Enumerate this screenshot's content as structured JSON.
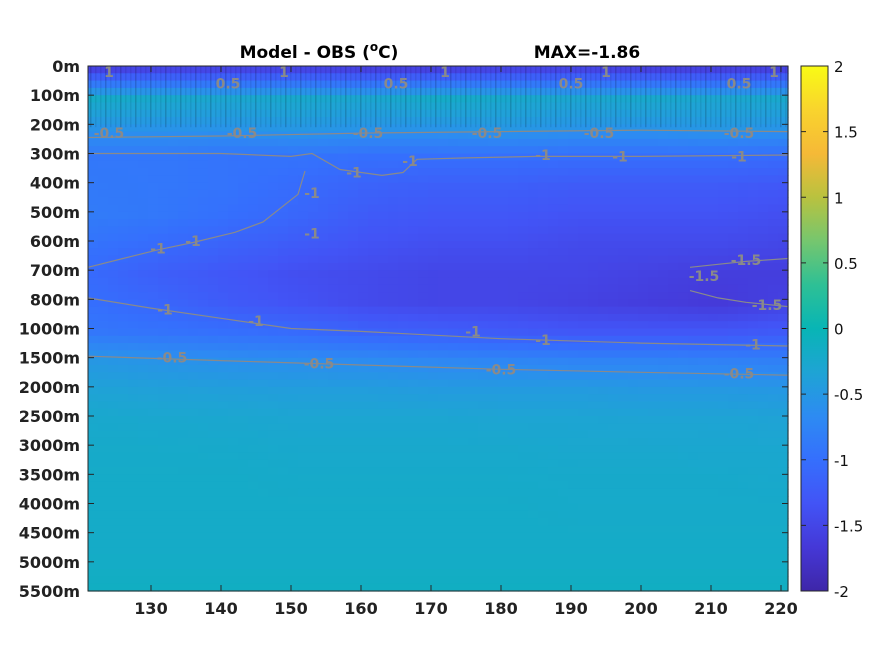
{
  "chart_data": {
    "type": "heatmap",
    "title": "Model - OBS (oC)",
    "title_parts": {
      "prefix": "Model - OBS (",
      "superscript": "o",
      "suffix": "C)"
    },
    "max_label": "MAX=-1.86",
    "xlabel": "",
    "ylabel": "",
    "xlim": [
      121,
      221
    ],
    "x_ticks": [
      130,
      140,
      150,
      160,
      170,
      180,
      190,
      200,
      210,
      220
    ],
    "y_ticks": [
      "0m",
      "100m",
      "200m",
      "300m",
      "400m",
      "500m",
      "600m",
      "700m",
      "800m",
      "1000m",
      "1500m",
      "2000m",
      "2500m",
      "3000m",
      "3500m",
      "4000m",
      "4500m",
      "5000m",
      "5500m"
    ],
    "colorbar": {
      "range": [
        -2,
        2
      ],
      "ticks": [
        "2",
        "1.5",
        "1",
        "0.5",
        "0",
        "-0.5",
        "-1",
        "-1.5",
        "-2"
      ],
      "colormap": [
        "#3e26a8",
        "#4538d7",
        "#4254f6",
        "#356ffd",
        "#2d8bf2",
        "#1ea4d4",
        "#08b5b5",
        "#2ec095",
        "#76c66e",
        "#b9c23f",
        "#f5b937",
        "#f9d42d",
        "#f9fb15"
      ]
    },
    "grid": false,
    "rows": [
      {
        "depth": "0m",
        "values": [
          -1.55,
          -1.5,
          -1.5,
          -1.5,
          -1.55,
          -1.55,
          -1.5,
          -1.5,
          -1.55,
          -1.55,
          -1.55
        ]
      },
      {
        "depth": "100m",
        "values": [
          -0.2,
          -0.25,
          -0.3,
          -0.25,
          -0.3,
          -0.2,
          -0.25,
          -0.3,
          -0.25,
          -0.3,
          -0.25
        ]
      },
      {
        "depth": "200m",
        "values": [
          -0.55,
          -0.55,
          -0.55,
          -0.5,
          -0.55,
          -0.55,
          -0.5,
          -0.55,
          -0.55,
          -0.5,
          -0.55
        ]
      },
      {
        "depth": "300m",
        "values": [
          -0.9,
          -0.9,
          -0.95,
          -0.95,
          -1.0,
          -1.0,
          -1.0,
          -1.02,
          -1.02,
          -1.02,
          -1.05
        ]
      },
      {
        "depth": "400m",
        "values": [
          -0.88,
          -0.9,
          -0.95,
          -1.05,
          -1.15,
          -1.2,
          -1.2,
          -1.25,
          -1.25,
          -1.25,
          -1.3
        ]
      },
      {
        "depth": "500m",
        "values": [
          -0.85,
          -0.9,
          -1.0,
          -1.1,
          -1.25,
          -1.3,
          -1.3,
          -1.35,
          -1.35,
          -1.35,
          -1.4
        ]
      },
      {
        "depth": "600m",
        "values": [
          -0.95,
          -1.05,
          -1.15,
          -1.25,
          -1.35,
          -1.4,
          -1.4,
          -1.45,
          -1.45,
          -1.45,
          -1.5
        ]
      },
      {
        "depth": "700m",
        "values": [
          -1.05,
          -1.2,
          -1.3,
          -1.4,
          -1.45,
          -1.5,
          -1.5,
          -1.5,
          -1.55,
          -1.6,
          -1.6
        ]
      },
      {
        "depth": "800m",
        "values": [
          -1.0,
          -1.1,
          -1.25,
          -1.35,
          -1.45,
          -1.5,
          -1.5,
          -1.55,
          -1.6,
          -1.65,
          -1.55
        ]
      },
      {
        "depth": "1000m",
        "values": [
          -0.9,
          -0.95,
          -1.0,
          -1.05,
          -1.15,
          -1.2,
          -1.25,
          -1.3,
          -1.3,
          -1.3,
          -1.25
        ]
      },
      {
        "depth": "1500m",
        "values": [
          -0.5,
          -0.55,
          -0.6,
          -0.62,
          -0.65,
          -0.7,
          -0.72,
          -0.75,
          -0.75,
          -0.78,
          -0.8
        ]
      },
      {
        "depth": "2000m",
        "values": [
          -0.35,
          -0.38,
          -0.4,
          -0.42,
          -0.42,
          -0.45,
          -0.45,
          -0.45,
          -0.48,
          -0.48,
          -0.5
        ]
      },
      {
        "depth": "2500m",
        "values": [
          -0.25,
          -0.27,
          -0.28,
          -0.3,
          -0.3,
          -0.3,
          -0.32,
          -0.32,
          -0.33,
          -0.33,
          -0.35
        ]
      },
      {
        "depth": "3000m",
        "values": [
          -0.22,
          -0.22,
          -0.23,
          -0.25,
          -0.25,
          -0.25,
          -0.25,
          -0.27,
          -0.27,
          -0.28,
          -0.28
        ]
      },
      {
        "depth": "3500m",
        "values": [
          -0.2,
          -0.2,
          -0.2,
          -0.22,
          -0.22,
          -0.22,
          -0.22,
          -0.23,
          -0.23,
          -0.23,
          -0.25
        ]
      },
      {
        "depth": "4000m",
        "values": [
          -0.2,
          -0.2,
          -0.2,
          -0.2,
          -0.2,
          -0.2,
          -0.2,
          -0.22,
          -0.22,
          -0.22,
          -0.22
        ]
      },
      {
        "depth": "4500m",
        "values": [
          -0.2,
          -0.2,
          -0.2,
          -0.2,
          -0.2,
          -0.2,
          -0.2,
          -0.2,
          -0.2,
          -0.2,
          -0.2
        ]
      },
      {
        "depth": "5000m",
        "values": [
          -0.18,
          -0.18,
          -0.18,
          -0.18,
          -0.18,
          -0.18,
          -0.18,
          -0.18,
          -0.18,
          -0.18,
          -0.18
        ]
      },
      {
        "depth": "5500m",
        "values": [
          -0.12,
          -0.12,
          -0.12,
          -0.12,
          -0.12,
          -0.12,
          -0.12,
          -0.12,
          -0.12,
          -0.12,
          -0.12
        ]
      }
    ],
    "row_x": [
      121,
      131,
      141,
      151,
      161,
      171,
      181,
      191,
      201,
      211,
      221
    ],
    "contour_labels": [
      {
        "text": "1",
        "x": 124,
        "depth": 0.2
      },
      {
        "text": "1",
        "x": 149,
        "depth": 0.2
      },
      {
        "text": "1",
        "x": 172,
        "depth": 0.2
      },
      {
        "text": "1",
        "x": 195,
        "depth": 0.2
      },
      {
        "text": "1",
        "x": 219,
        "depth": 0.2
      },
      {
        "text": "0.5",
        "x": 141,
        "depth": 0.6
      },
      {
        "text": "0.5",
        "x": 165,
        "depth": 0.6
      },
      {
        "text": "0.5",
        "x": 190,
        "depth": 0.6
      },
      {
        "text": "0.5",
        "x": 214,
        "depth": 0.6
      },
      {
        "text": "-0.5",
        "x": 124,
        "depth": 2.3
      },
      {
        "text": "-0.5",
        "x": 143,
        "depth": 2.3
      },
      {
        "text": "-0.5",
        "x": 161,
        "depth": 2.3
      },
      {
        "text": "-0.5",
        "x": 178,
        "depth": 2.3
      },
      {
        "text": "-0.5",
        "x": 194,
        "depth": 2.3
      },
      {
        "text": "-0.5",
        "x": 214,
        "depth": 2.3
      },
      {
        "text": "-1",
        "x": 167,
        "depth": 3.25
      },
      {
        "text": "-1",
        "x": 186,
        "depth": 3.05
      },
      {
        "text": "-1",
        "x": 197,
        "depth": 3.1
      },
      {
        "text": "-1",
        "x": 214,
        "depth": 3.1
      },
      {
        "text": "-1",
        "x": 159,
        "depth": 3.65
      },
      {
        "text": "-1",
        "x": 153,
        "depth": 4.35
      },
      {
        "text": "-1",
        "x": 131,
        "depth": 6.25
      },
      {
        "text": "-1",
        "x": 136,
        "depth": 6.0
      },
      {
        "text": "-1",
        "x": 153,
        "depth": 5.75
      },
      {
        "text": "-1",
        "x": 176,
        "depth": 9.1
      },
      {
        "text": "-1",
        "x": 132,
        "depth": 8.35
      },
      {
        "text": "-1",
        "x": 145,
        "depth": 8.75
      },
      {
        "text": "-1",
        "x": 186,
        "depth": 9.4
      },
      {
        "text": "-1",
        "x": 216,
        "depth": 9.55
      },
      {
        "text": "-1.5",
        "x": 215,
        "depth": 6.65
      },
      {
        "text": "-1.5",
        "x": 218,
        "depth": 8.2
      },
      {
        "text": "-1.5",
        "x": 209,
        "depth": 7.2
      },
      {
        "text": "-0.5",
        "x": 133,
        "depth": 10.0
      },
      {
        "text": "-0.5",
        "x": 154,
        "depth": 10.2
      },
      {
        "text": "-0.5",
        "x": 180,
        "depth": 10.4
      },
      {
        "text": "-0.5",
        "x": 214,
        "depth": 10.55
      }
    ],
    "contours": [
      {
        "level": -0.5,
        "x": [
          121,
          140,
          160,
          180,
          200,
          221
        ],
        "depth": [
          2.45,
          2.4,
          2.3,
          2.25,
          2.2,
          2.25
        ]
      },
      {
        "level": -1,
        "x": [
          121,
          140,
          150,
          153,
          157,
          163,
          166,
          168,
          175,
          185,
          200,
          221
        ],
        "depth": [
          3.0,
          3.0,
          3.1,
          3.0,
          3.55,
          3.75,
          3.65,
          3.2,
          3.15,
          3.1,
          3.1,
          3.05
        ]
      },
      {
        "level": -1,
        "x": [
          121,
          126,
          131,
          136,
          142,
          146,
          151,
          152
        ],
        "depth": [
          6.9,
          6.6,
          6.3,
          6.05,
          5.7,
          5.35,
          4.4,
          3.6
        ]
      },
      {
        "level": -1,
        "x": [
          121,
          130,
          140,
          150,
          160,
          180,
          200,
          221
        ],
        "depth": [
          7.95,
          8.3,
          8.65,
          9.0,
          9.1,
          9.35,
          9.5,
          9.6
        ]
      },
      {
        "level": -1.5,
        "x": [
          207,
          211,
          215,
          221
        ],
        "depth": [
          6.9,
          6.8,
          6.7,
          6.6
        ]
      },
      {
        "level": -1.5,
        "x": [
          207,
          211,
          215,
          221
        ],
        "depth": [
          7.7,
          7.95,
          8.1,
          8.25
        ]
      },
      {
        "level": -0.5,
        "x": [
          121,
          140,
          160,
          180,
          200,
          221
        ],
        "depth": [
          9.95,
          10.1,
          10.25,
          10.4,
          10.5,
          10.6
        ]
      }
    ]
  }
}
